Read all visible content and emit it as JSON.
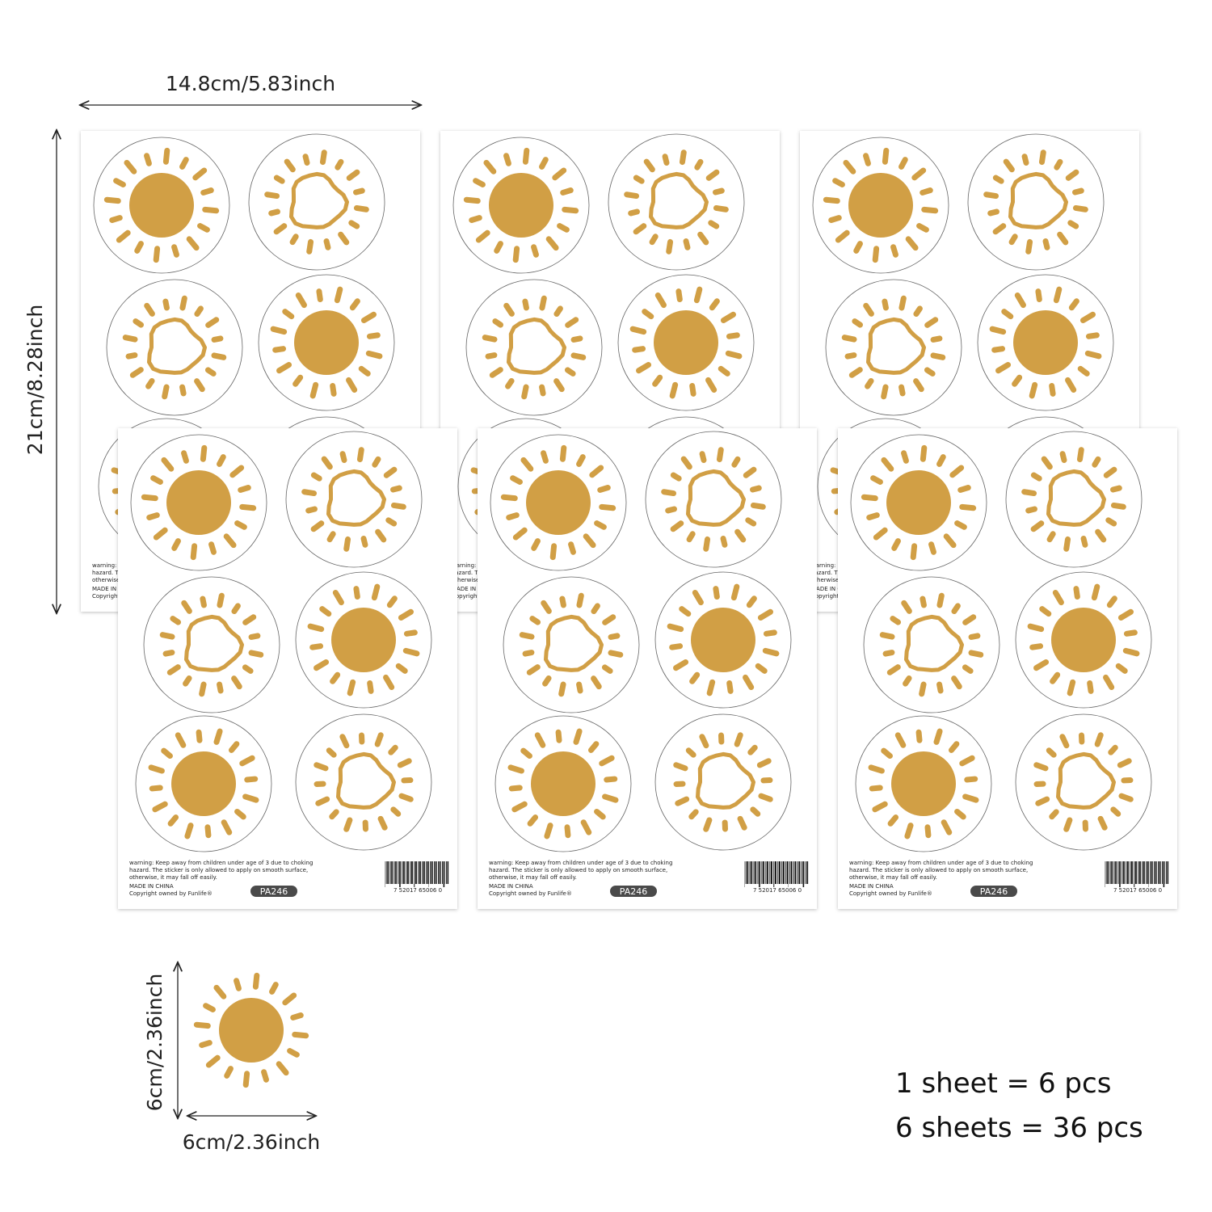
{
  "dimensions": {
    "sheet_width": "14.8cm/5.83inch",
    "sheet_height": "21cm/8.28inch",
    "sticker_height": "6cm/2.36inch",
    "sticker_width": "6cm/2.36inch"
  },
  "sheet": {
    "warning": [
      "warning: Keep away from children under age of 3 due to choking",
      "hazard. The sticker is only allowed to apply on smooth surface,",
      "otherwise, it may fall off easily."
    ],
    "origin": "MADE IN CHINA",
    "copyright": "Copyright owned by Funlife®",
    "code": "PA246",
    "barcode": "7  52017  65006  0"
  },
  "summary": [
    "1 sheet = 6 pcs",
    "6 sheets = 36 pcs"
  ]
}
